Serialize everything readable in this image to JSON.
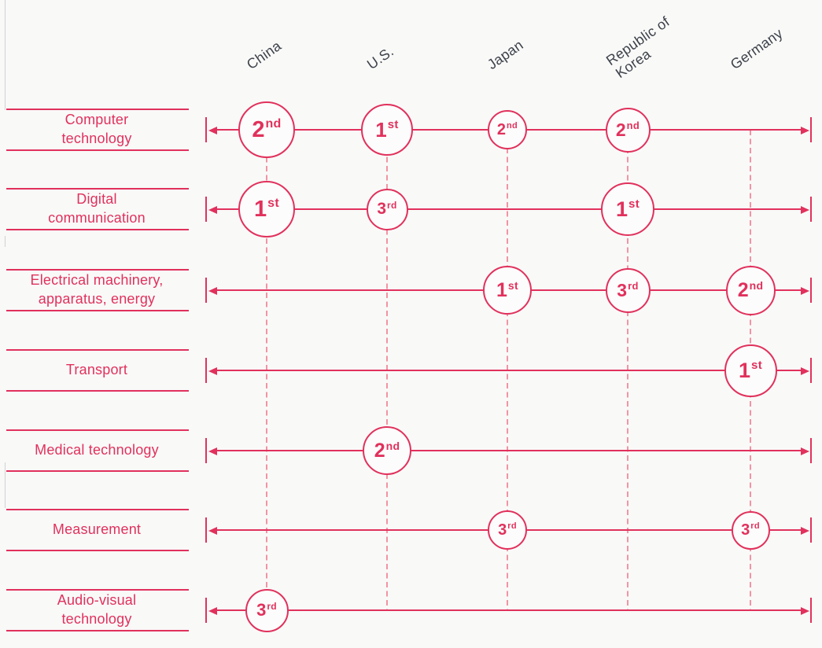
{
  "palette": {
    "accent": "#e1315c",
    "dash_pink": "#f294a3",
    "country_text": "#3d424a",
    "page_background": "#f9f9f8",
    "edge_artifact_gray": "#d2d2d2"
  },
  "chart_data": {
    "type": "scatter",
    "description": "Top-3 country rankings per technology field; labelled circles mark each country's rank, circle size reflects relative magnitude",
    "legend_position": "none",
    "grid": "dashed vertical column guides",
    "columns": [
      {
        "label": "China",
        "label_lines": [
          "China"
        ]
      },
      {
        "label": "U.S.",
        "label_lines": [
          "U.S."
        ]
      },
      {
        "label": "Japan",
        "label_lines": [
          "Japan"
        ]
      },
      {
        "label": "Republic of Korea",
        "label_lines": [
          "Republic of",
          "Korea"
        ]
      },
      {
        "label": "Germany",
        "label_lines": [
          "Germany"
        ]
      }
    ],
    "rows": [
      {
        "label": "Computer technology",
        "label_lines": [
          "Computer",
          "technology"
        ]
      },
      {
        "label": "Digital communication",
        "label_lines": [
          "Digital",
          "communication"
        ]
      },
      {
        "label": "Electrical machinery, apparatus, energy",
        "label_lines": [
          "Electrical machinery,",
          "apparatus, energy"
        ]
      },
      {
        "label": "Transport",
        "label_lines": [
          "Transport"
        ]
      },
      {
        "label": "Medical technology",
        "label_lines": [
          "Medical technology"
        ]
      },
      {
        "label": "Measurement",
        "label_lines": [
          "Measurement"
        ]
      },
      {
        "label": "Audio-visual technology",
        "label_lines": [
          "Audio-visual",
          "technology"
        ]
      }
    ],
    "points": [
      {
        "row": 0,
        "col": 0,
        "rank": "2nd",
        "rank_value": "2",
        "rank_suffix": "nd",
        "diameter": 72
      },
      {
        "row": 0,
        "col": 1,
        "rank": "1st",
        "rank_value": "1",
        "rank_suffix": "st",
        "diameter": 66
      },
      {
        "row": 0,
        "col": 2,
        "rank": "2nd",
        "rank_value": "2",
        "rank_suffix": "nd",
        "diameter": 50
      },
      {
        "row": 0,
        "col": 3,
        "rank": "2nd",
        "rank_value": "2",
        "rank_suffix": "nd",
        "diameter": 57
      },
      {
        "row": 1,
        "col": 0,
        "rank": "1st",
        "rank_value": "1",
        "rank_suffix": "st",
        "diameter": 72
      },
      {
        "row": 1,
        "col": 1,
        "rank": "3rd",
        "rank_value": "3",
        "rank_suffix": "rd",
        "diameter": 53
      },
      {
        "row": 1,
        "col": 3,
        "rank": "1st",
        "rank_value": "1",
        "rank_suffix": "st",
        "diameter": 68
      },
      {
        "row": 2,
        "col": 2,
        "rank": "1st",
        "rank_value": "1",
        "rank_suffix": "st",
        "diameter": 62
      },
      {
        "row": 2,
        "col": 3,
        "rank": "3rd",
        "rank_value": "3",
        "rank_suffix": "rd",
        "diameter": 57
      },
      {
        "row": 2,
        "col": 4,
        "rank": "2nd",
        "rank_value": "2",
        "rank_suffix": "nd",
        "diameter": 63
      },
      {
        "row": 3,
        "col": 4,
        "rank": "1st",
        "rank_value": "1",
        "rank_suffix": "st",
        "diameter": 67
      },
      {
        "row": 4,
        "col": 1,
        "rank": "2nd",
        "rank_value": "2",
        "rank_suffix": "nd",
        "diameter": 62
      },
      {
        "row": 5,
        "col": 2,
        "rank": "3rd",
        "rank_value": "3",
        "rank_suffix": "rd",
        "diameter": 50
      },
      {
        "row": 5,
        "col": 4,
        "rank": "3rd",
        "rank_value": "3",
        "rank_suffix": "rd",
        "diameter": 49
      },
      {
        "row": 6,
        "col": 0,
        "rank": "3rd",
        "rank_value": "3",
        "rank_suffix": "rd",
        "diameter": 55
      }
    ]
  }
}
